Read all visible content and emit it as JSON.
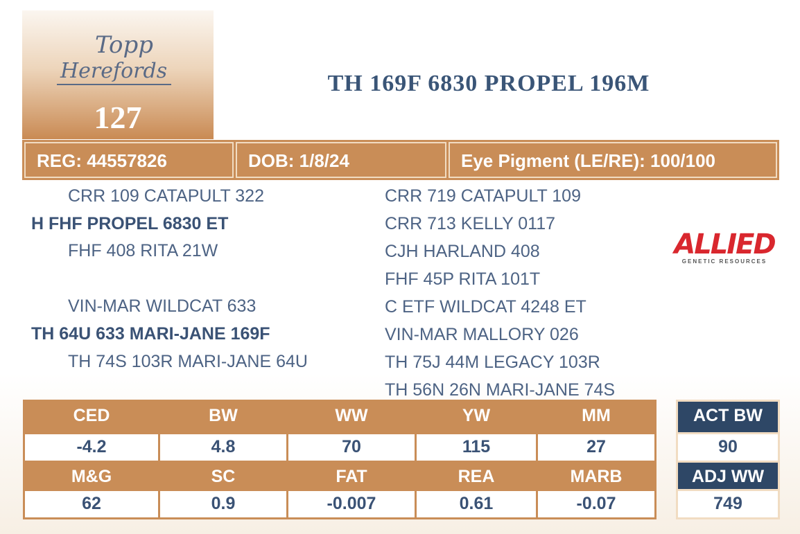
{
  "logo": {
    "line1": "Topp",
    "line2": "Herefords"
  },
  "lot": "127",
  "title": "TH 169F 6830 PROPEL 196M",
  "info": [
    "REG: 44557826",
    "DOB: 1/8/24",
    "Eye Pigment (LE/RE): 100/100"
  ],
  "pedigree": {
    "sire_sire": "CRR 109 CATAPULT 322",
    "sire": "H FHF PROPEL 6830 ET",
    "sire_dam": "FHF 408 RITA 21W",
    "dam_sire": "VIN-MAR WILDCAT 633",
    "dam": "TH 64U 633 MARI-JANE 169F",
    "dam_dam": "TH 74S 103R MARI-JANE 64U",
    "third_generation": [
      "CRR 719 CATAPULT 109",
      "CRR 713 KELLY 0117",
      "CJH HARLAND 408",
      "FHF 45P RITA 101T",
      "C ETF WILDCAT 4248 ET",
      "VIN-MAR MALLORY 026",
      "TH 75J 44M LEGACY 103R",
      "TH 56N 26N MARI-JANE 74S"
    ]
  },
  "sponsor": {
    "name": "ALLIED",
    "tagline": "GENETIC RESOURCES"
  },
  "epd": {
    "rows": [
      {
        "headers": [
          "CED",
          "BW",
          "WW",
          "YW",
          "MM"
        ],
        "values": [
          "-4.2",
          "4.8",
          "70",
          "115",
          "27"
        ]
      },
      {
        "headers": [
          "M&G",
          "SC",
          "FAT",
          "REA",
          "MARB"
        ],
        "values": [
          "62",
          "0.9",
          "-0.007",
          "0.61",
          "-0.07"
        ]
      }
    ]
  },
  "actual": [
    {
      "label": "ACT BW",
      "value": "90"
    },
    {
      "label": "ADJ WW",
      "value": "749"
    }
  ]
}
